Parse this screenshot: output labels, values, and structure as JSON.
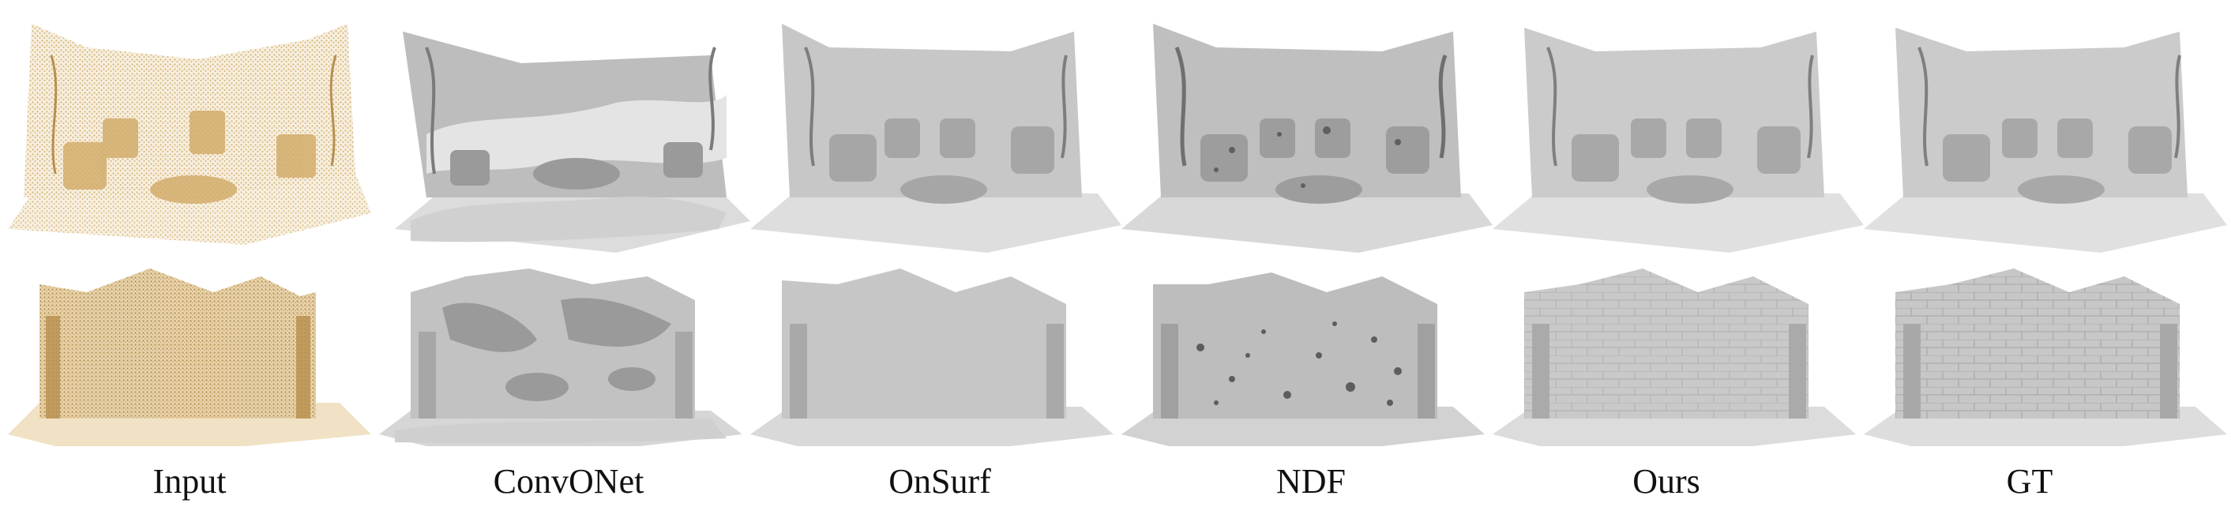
{
  "figure": {
    "columns": [
      {
        "key": "input",
        "label": "Input"
      },
      {
        "key": "convonet",
        "label": "ConvONet"
      },
      {
        "key": "onsurf",
        "label": "OnSurf"
      },
      {
        "key": "ndf",
        "label": "NDF"
      },
      {
        "key": "ours",
        "label": "Ours"
      },
      {
        "key": "gt",
        "label": "GT"
      }
    ],
    "rows": [
      "room-scene",
      "ruin-wall-scene"
    ]
  },
  "colors": {
    "point_cloud": "#d9b77a",
    "point_cloud_dark": "#b88f4e",
    "mesh_light": "#e2e2e2",
    "mesh_mid": "#c4c4c4",
    "mesh_dark": "#8f8f8f",
    "floor": "#dcdcdc",
    "label": "#111111"
  }
}
